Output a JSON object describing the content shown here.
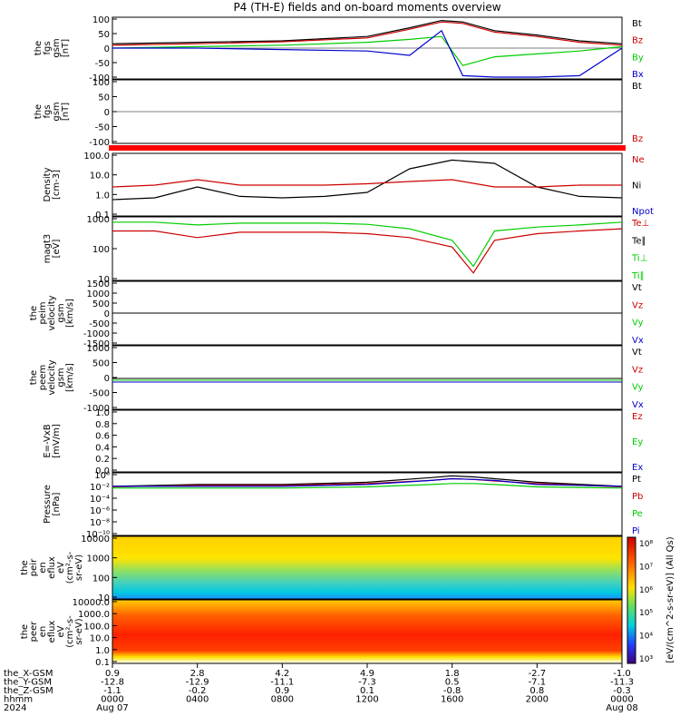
{
  "title": "P4 (TH-E) fields and on-board moments overview",
  "panels": [
    {
      "id": "fgs_gsm",
      "ylabel": [
        "the",
        "fgs",
        "gsm",
        "[nT]"
      ],
      "ticks": [
        "100",
        "50",
        "0",
        "-50",
        "-100"
      ],
      "legend": [
        {
          "text": "Bt",
          "color": "#000000"
        },
        {
          "text": "Bz",
          "color": "#cc0000"
        },
        {
          "text": "By",
          "color": "#00cc00"
        },
        {
          "text": "Bx",
          "color": "#0000cc"
        }
      ]
    },
    {
      "id": "fgs_gsm_zoom",
      "ylabel": [
        "the",
        "fgs",
        "gsm",
        "[nT]"
      ],
      "ticks": [
        "100",
        "50",
        "0",
        "-50",
        "-100"
      ],
      "legend": [
        {
          "text": "Bt",
          "color": "#000000"
        },
        {
          "text": "Bz",
          "color": "#cc0000"
        }
      ]
    },
    {
      "id": "status_bar",
      "ylabel": [],
      "ticks": [],
      "legend": []
    },
    {
      "id": "density",
      "ylabel": [
        "Density",
        "[cm-3]"
      ],
      "ticks": [
        "100.0",
        "10.0",
        "1.0",
        "0.1"
      ],
      "legend": [
        {
          "text": "Ne",
          "color": "#cc0000"
        },
        {
          "text": "Ni",
          "color": "#000000"
        },
        {
          "text": "Npot",
          "color": "#0000cc"
        }
      ]
    },
    {
      "id": "temperature",
      "ylabel": [
        "magt3",
        "[eV]"
      ],
      "ticks": [
        "1000",
        "100",
        "10"
      ],
      "legend": [
        {
          "text": "Te⊥",
          "color": "#cc0000"
        },
        {
          "text": "Te∥",
          "color": "#000000"
        },
        {
          "text": "Ti⊥",
          "color": "#00cc00"
        },
        {
          "text": "Ti∥",
          "color": "#00cc00"
        }
      ]
    },
    {
      "id": "ion_velocity",
      "ylabel": [
        "the",
        "peim",
        "velocity",
        "gsm",
        "[km/s]"
      ],
      "ticks": [
        "1500",
        "1000",
        "500",
        "0",
        "-500",
        "-1000",
        "-1500"
      ],
      "legend": [
        {
          "text": "Vt",
          "color": "#000000"
        },
        {
          "text": "Vz",
          "color": "#cc0000"
        },
        {
          "text": "Vy",
          "color": "#00cc00"
        },
        {
          "text": "Vx",
          "color": "#0000cc"
        }
      ]
    },
    {
      "id": "electron_velocity",
      "ylabel": [
        "the",
        "peem",
        "velocity",
        "gsm",
        "[km/s]"
      ],
      "ticks": [
        "1000",
        "500",
        "0",
        "-500",
        "-1000"
      ],
      "legend": [
        {
          "text": "Vt",
          "color": "#000000"
        },
        {
          "text": "Vz",
          "color": "#cc0000"
        },
        {
          "text": "Vy",
          "color": "#00cc00"
        },
        {
          "text": "Vx",
          "color": "#0000cc"
        }
      ]
    },
    {
      "id": "efield",
      "ylabel": [
        "E=-VxB",
        "[mV/m]"
      ],
      "ticks": [
        "1.0",
        "0.8",
        "0.6",
        "0.4",
        "0.2",
        "0.0"
      ],
      "legend": [
        {
          "text": "Ez",
          "color": "#cc0000"
        },
        {
          "text": "Ey",
          "color": "#00cc00"
        },
        {
          "text": "Ex",
          "color": "#0000cc"
        }
      ]
    },
    {
      "id": "pressure",
      "ylabel": [
        "Pressure",
        "[nPa]"
      ],
      "ticks": [
        "10⁰",
        "10⁻²",
        "10⁻⁴",
        "10⁻⁶",
        "10⁻⁸",
        "10⁻¹⁰"
      ],
      "legend": [
        {
          "text": "Pt",
          "color": "#000000"
        },
        {
          "text": "Pb",
          "color": "#cc0000"
        },
        {
          "text": "Pe",
          "color": "#00cc00"
        },
        {
          "text": "Pi",
          "color": "#0000cc"
        }
      ]
    },
    {
      "id": "ion_spec",
      "ylabel": [
        "the",
        "peir",
        "en",
        "eflux",
        "eV",
        "(cm²-s-",
        "sr-eV)"
      ],
      "ticks": [
        "10000",
        "1000",
        "100",
        "10"
      ],
      "legend": []
    },
    {
      "id": "electron_spec",
      "ylabel": [
        "the",
        "peer",
        "en",
        "eflux",
        "eV",
        "(cm²-s-",
        "sr-eV)"
      ],
      "ticks": [
        "10000.0",
        "1000.0",
        "100.0",
        "10.0",
        "1.0",
        "0.1"
      ],
      "legend": []
    }
  ],
  "colorbar": {
    "ticks": [
      "10⁸",
      "10⁷",
      "10⁶",
      "10⁵",
      "10⁴",
      "10³"
    ],
    "label": "[eV/(cm^2-s-sr-eV)] (All Qs)"
  },
  "x_axis": {
    "rows": [
      {
        "name": "the_X-GSM",
        "values": [
          "0.9",
          "2.8",
          "4.2",
          "4.9",
          "1.8",
          "-2.7",
          "-1.0"
        ]
      },
      {
        "name": "the_Y-GSM",
        "values": [
          "-12.8",
          "-12.9",
          "-11.1",
          "-7.3",
          "0.5",
          "-7.1",
          "-11.3"
        ]
      },
      {
        "name": "the_Z-GSM",
        "values": [
          "-1.1",
          "-0.2",
          "0.9",
          "0.1",
          "-0.8",
          "0.8",
          "-0.3"
        ]
      },
      {
        "name": "hhmm",
        "values": [
          "0000",
          "0400",
          "0800",
          "1200",
          "1600",
          "2000",
          "0000"
        ]
      },
      {
        "name": "2024",
        "values": [
          "Aug 07",
          "",
          "",
          "",
          "",
          "",
          "Aug 08"
        ]
      }
    ]
  },
  "chart_data": {
    "type": "line",
    "title": "P4 (TH-E) fields and on-board moments overview",
    "x_hours": [
      0,
      4,
      8,
      12,
      16,
      20,
      24
    ],
    "x_tick_labels": [
      "0000",
      "0400",
      "0800",
      "1200",
      "1600",
      "2000",
      "0000"
    ],
    "series": [
      {
        "panel": "fgs_gsm",
        "name": "Bt",
        "x": [
          0,
          4,
          8,
          12,
          14,
          15.5,
          16.5,
          18,
          20,
          22,
          24
        ],
        "y": [
          15,
          20,
          25,
          40,
          70,
          95,
          90,
          60,
          45,
          25,
          15
        ]
      },
      {
        "panel": "fgs_gsm",
        "name": "Bz",
        "x": [
          0,
          4,
          8,
          12,
          14,
          15.5,
          16.5,
          18,
          20,
          22,
          24
        ],
        "y": [
          10,
          15,
          22,
          35,
          65,
          90,
          85,
          55,
          40,
          20,
          10
        ]
      },
      {
        "panel": "fgs_gsm",
        "name": "By",
        "x": [
          0,
          4,
          8,
          12,
          14,
          15.5,
          16.5,
          18,
          20,
          22,
          24
        ],
        "y": [
          0,
          5,
          10,
          20,
          30,
          40,
          -60,
          -30,
          -20,
          -10,
          5
        ]
      },
      {
        "panel": "fgs_gsm",
        "name": "Bx",
        "x": [
          0,
          4,
          8,
          12,
          14,
          15.5,
          16.5,
          18,
          20,
          22,
          24
        ],
        "y": [
          0,
          0,
          -5,
          -10,
          -25,
          60,
          -95,
          -100,
          -100,
          -95,
          0
        ]
      },
      {
        "panel": "density",
        "name": "Ni",
        "x": [
          0,
          2,
          4,
          6,
          8,
          10,
          12,
          14,
          16,
          18,
          20,
          22,
          24
        ],
        "y": [
          0.4,
          0.5,
          2,
          0.6,
          0.5,
          0.6,
          1,
          20,
          60,
          40,
          2,
          0.6,
          0.5
        ]
      },
      {
        "panel": "density",
        "name": "Ne",
        "x": [
          0,
          2,
          4,
          6,
          8,
          10,
          12,
          14,
          16,
          18,
          20,
          22,
          24
        ],
        "y": [
          2,
          2.5,
          5,
          2.5,
          2.5,
          2.5,
          3,
          4,
          5,
          2,
          2,
          2.5,
          2.5
        ]
      },
      {
        "panel": "temperature",
        "name": "Ti",
        "x": [
          0,
          2,
          4,
          6,
          8,
          10,
          12,
          14,
          16,
          17,
          18,
          20,
          22,
          24
        ],
        "y": [
          2000,
          2000,
          1500,
          1800,
          1800,
          1800,
          1600,
          1000,
          300,
          20,
          800,
          1200,
          1500,
          2000
        ]
      },
      {
        "panel": "temperature",
        "name": "Te",
        "x": [
          0,
          2,
          4,
          6,
          8,
          10,
          12,
          14,
          16,
          17,
          18,
          20,
          22,
          24
        ],
        "y": [
          800,
          800,
          400,
          700,
          700,
          700,
          600,
          400,
          150,
          10,
          300,
          600,
          800,
          1000
        ]
      },
      {
        "panel": "pressure",
        "name": "Pt",
        "x": [
          0,
          4,
          8,
          12,
          15,
          16,
          17,
          18,
          20,
          24
        ],
        "y": [
          0.01,
          0.02,
          0.02,
          0.05,
          0.3,
          0.6,
          0.4,
          0.2,
          0.05,
          0.01
        ]
      },
      {
        "panel": "pressure",
        "name": "Pb",
        "x": [
          0,
          4,
          8,
          12,
          15,
          16,
          17,
          18,
          20,
          24
        ],
        "y": [
          0.008,
          0.015,
          0.015,
          0.03,
          0.1,
          0.2,
          0.15,
          0.08,
          0.03,
          0.008
        ]
      },
      {
        "panel": "pressure",
        "name": "Pi",
        "x": [
          0,
          4,
          8,
          12,
          15,
          16,
          17,
          18,
          20,
          24
        ],
        "y": [
          0.01,
          0.01,
          0.01,
          0.02,
          0.1,
          0.2,
          0.15,
          0.1,
          0.02,
          0.01
        ]
      },
      {
        "panel": "pressure",
        "name": "Pe",
        "x": [
          0,
          4,
          8,
          12,
          15,
          16,
          17,
          18,
          20,
          24
        ],
        "y": [
          0.005,
          0.005,
          0.005,
          0.008,
          0.02,
          0.03,
          0.03,
          0.02,
          0.008,
          0.005
        ]
      }
    ],
    "colors": {
      "Bt": "#000000",
      "Bz": "#cc0000",
      "By": "#00cc00",
      "Bx": "#0000cc",
      "Ni": "#000000",
      "Ne": "#cc0000",
      "Ti": "#00cc00",
      "Te": "#cc0000",
      "Pt": "#000000",
      "Pb": "#cc0000",
      "Pi": "#0000cc",
      "Pe": "#00cc00"
    }
  }
}
